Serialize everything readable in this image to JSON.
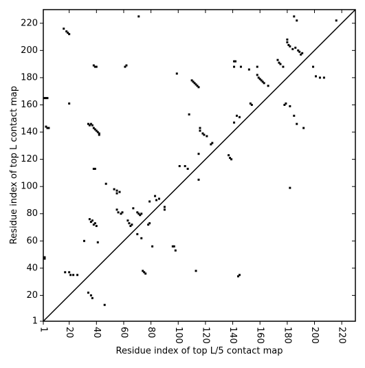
{
  "chart_data": {
    "type": "scatter",
    "xlabel": "Residue index of top L/5 contact map",
    "ylabel": "Residue index of top L contact map",
    "color": "#000000",
    "diagonal": true,
    "xlim": [
      1,
      230
    ],
    "ylim": [
      1,
      230
    ],
    "xticks": [
      1,
      20,
      40,
      60,
      80,
      100,
      120,
      140,
      160,
      180,
      200,
      220
    ],
    "yticks": [
      1,
      20,
      40,
      60,
      80,
      100,
      120,
      140,
      160,
      180,
      200,
      220
    ],
    "x": [
      2,
      3,
      4,
      3,
      4,
      5,
      2,
      2,
      16,
      18,
      19,
      20,
      20,
      34,
      35,
      36,
      37,
      38,
      39,
      40,
      41,
      42,
      42,
      38,
      39,
      38,
      39,
      40,
      47,
      53,
      55,
      55,
      57,
      55,
      56,
      58,
      59,
      63,
      64,
      65,
      66,
      67,
      70,
      71,
      72,
      73,
      71,
      61,
      62,
      79,
      83,
      84,
      86,
      90,
      90,
      97,
      99,
      101,
      105,
      107,
      108,
      110,
      111,
      112,
      113,
      114,
      115,
      116,
      116,
      118,
      119,
      121,
      124,
      125,
      137,
      138,
      139,
      141,
      141,
      141,
      142,
      143,
      145,
      146,
      152,
      153,
      154,
      158,
      158,
      159,
      160,
      161,
      162,
      163,
      166,
      173,
      174,
      175,
      177,
      178,
      179,
      180,
      180,
      181,
      182,
      182,
      184,
      185,
      187,
      186,
      188,
      189,
      190,
      191,
      199,
      201,
      204,
      207,
      216,
      17,
      20,
      21,
      23,
      26,
      31,
      34,
      36,
      37,
      35,
      36,
      37,
      38,
      39,
      40,
      41,
      46,
      70,
      73,
      74,
      75,
      76,
      78,
      79,
      81,
      96,
      98,
      113,
      115,
      115,
      144,
      145,
      182,
      185,
      187,
      192
    ],
    "values": [
      165,
      165,
      165,
      144,
      143,
      143,
      48,
      47,
      216,
      214,
      213,
      212,
      161,
      146,
      145,
      146,
      145,
      143,
      142,
      141,
      140,
      139,
      138,
      113,
      113,
      189,
      188,
      188,
      102,
      98,
      97,
      95,
      96,
      83,
      81,
      80,
      81,
      75,
      73,
      71,
      72,
      84,
      81,
      80,
      79,
      80,
      225,
      188,
      189,
      89,
      93,
      90,
      91,
      85,
      83,
      56,
      183,
      115,
      115,
      113,
      153,
      178,
      177,
      176,
      175,
      174,
      173,
      143,
      141,
      139,
      138,
      137,
      131,
      132,
      123,
      121,
      120,
      147,
      188,
      192,
      192,
      152,
      151,
      188,
      186,
      161,
      160,
      188,
      182,
      180,
      179,
      178,
      177,
      176,
      174,
      193,
      191,
      190,
      188,
      160,
      161,
      206,
      208,
      204,
      203,
      159,
      201,
      225,
      222,
      202,
      200,
      199,
      197,
      198,
      188,
      181,
      180,
      180,
      222,
      37,
      37,
      35,
      35,
      35,
      60,
      22,
      20,
      18,
      76,
      74,
      75,
      72,
      73,
      71,
      59,
      13,
      65,
      62,
      38,
      37,
      36,
      72,
      73,
      56,
      56,
      53,
      38,
      105,
      124,
      34,
      35,
      99,
      152,
      146,
      143
    ]
  }
}
